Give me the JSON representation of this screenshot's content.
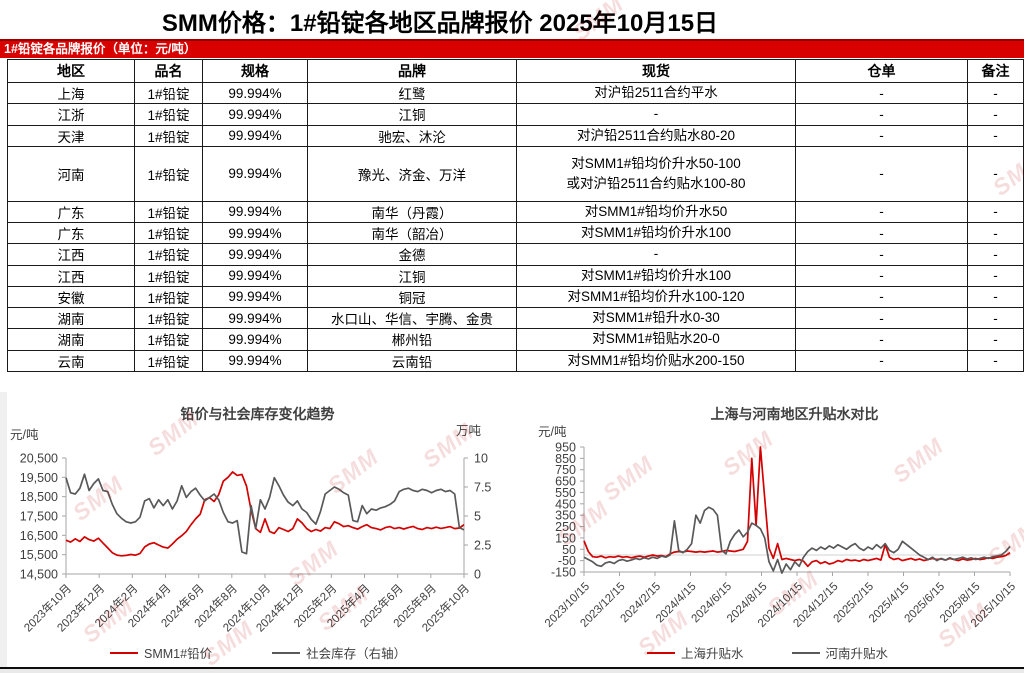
{
  "page": {
    "title": "SMM价格：1#铅锭各地区品牌报价 2025年10月15日",
    "banner": "1#铅锭各品牌报价（单位：元/吨）",
    "watermark": "SMM",
    "accent_red": "#d90000"
  },
  "table": {
    "headers": [
      "地区",
      "品名",
      "规格",
      "品牌",
      "现货",
      "仓单",
      "备注"
    ],
    "rows": [
      {
        "region": "上海",
        "product": "1#铅锭",
        "spec": "99.994%",
        "brand": "红鹭",
        "spot": [
          "对沪铅2511合约平水"
        ],
        "warrant": "-",
        "note": "-"
      },
      {
        "region": "江浙",
        "product": "1#铅锭",
        "spec": "99.994%",
        "brand": "江铜",
        "spot": [
          "-"
        ],
        "warrant": "-",
        "note": "-"
      },
      {
        "region": "天津",
        "product": "1#铅锭",
        "spec": "99.994%",
        "brand": "驰宏、沐沦",
        "spot": [
          "对沪铅2511合约贴水80-20"
        ],
        "warrant": "-",
        "note": "-"
      },
      {
        "region": "河南",
        "product": "1#铅锭",
        "spec": "99.994%",
        "brand": "豫光、济金、万洋",
        "spot": [
          "对SMM1#铅均价升水50-100",
          "或对沪铅2511合约贴水100-80"
        ],
        "warrant": "-",
        "note": "-"
      },
      {
        "region": "广东",
        "product": "1#铅锭",
        "spec": "99.994%",
        "brand": "南华（丹霞）",
        "spot": [
          "对SMM1#铅均价升水50"
        ],
        "warrant": "-",
        "note": "-"
      },
      {
        "region": "广东",
        "product": "1#铅锭",
        "spec": "99.994%",
        "brand": "南华（韶冶）",
        "spot": [
          "对SMM1#铅均价升水100"
        ],
        "warrant": "-",
        "note": "-"
      },
      {
        "region": "江西",
        "product": "1#铅锭",
        "spec": "99.994%",
        "brand": "金德",
        "spot": [
          "-"
        ],
        "warrant": "-",
        "note": "-"
      },
      {
        "region": "江西",
        "product": "1#铅锭",
        "spec": "99.994%",
        "brand": "江铜",
        "spot": [
          "对SMM1#铅均价升水100"
        ],
        "warrant": "-",
        "note": "-"
      },
      {
        "region": "安徽",
        "product": "1#铅锭",
        "spec": "99.994%",
        "brand": "铜冠",
        "spot": [
          "对SMM1#铅均价升水100-120"
        ],
        "warrant": "-",
        "note": "-"
      },
      {
        "region": "湖南",
        "product": "1#铅锭",
        "spec": "99.994%",
        "brand": "水口山、华信、宇腾、金贵",
        "spot": [
          "对SMM1#铅升水0-30"
        ],
        "warrant": "-",
        "note": "-"
      },
      {
        "region": "湖南",
        "product": "1#铅锭",
        "spec": "99.994%",
        "brand": "郴州铅",
        "spot": [
          "对SMM1#铅贴水20-0"
        ],
        "warrant": "-",
        "note": "-"
      },
      {
        "region": "云南",
        "product": "1#铅锭",
        "spec": "99.994%",
        "brand": "云南铅",
        "spot": [
          "对SMM1#铅均价贴水200-150"
        ],
        "warrant": "-",
        "note": "-"
      }
    ]
  },
  "chart_data": [
    {
      "type": "line",
      "title": "铅价与社会库存变化趋势",
      "left_axis": {
        "label": "元/吨",
        "min": 14500,
        "max": 20500,
        "ticks": [
          "20,500",
          "19,500",
          "18,500",
          "17,500",
          "16,500",
          "15,500",
          "14,500"
        ]
      },
      "right_axis": {
        "label": "万吨",
        "min": 0,
        "max": 10,
        "ticks": [
          "10",
          "7.5",
          "5",
          "2.5",
          "0"
        ]
      },
      "x_ticks": [
        "2023年10月",
        "2023年12月",
        "2024年2月",
        "2024年4月",
        "2024年6月",
        "2024年8月",
        "2024年10月",
        "2024年12月",
        "2025年2月",
        "2025年4月",
        "2025年6月",
        "2025年8月",
        "2025年10月"
      ],
      "grid": false,
      "legend_position": "bottom",
      "series": [
        {
          "name": "SMM1#铅价",
          "color": "#d40000",
          "axis": "left",
          "values": [
            16250,
            16150,
            16320,
            16180,
            16420,
            16280,
            16200,
            16350,
            16100,
            15850,
            15600,
            15480,
            15440,
            15460,
            15510,
            15470,
            15560,
            15900,
            16050,
            16120,
            16000,
            15890,
            15840,
            16050,
            16300,
            16480,
            16700,
            17050,
            17350,
            17600,
            18350,
            18450,
            18250,
            18600,
            19300,
            19500,
            19780,
            19600,
            19650,
            19050,
            17800,
            16850,
            16650,
            17350,
            16700,
            16600,
            16900,
            16800,
            16700,
            16850,
            17350,
            17150,
            16850,
            16700,
            16800,
            16720,
            16900,
            16850,
            17200,
            17100,
            16950,
            17000,
            16900,
            16820,
            16950,
            17050,
            16900,
            16850,
            16780,
            16900,
            16950,
            16850,
            16900,
            16830,
            16900,
            16960,
            16850,
            16800,
            16900,
            16850,
            16920,
            16860,
            16900,
            16950,
            16850,
            16880,
            17050
          ]
        },
        {
          "name": "社会库存（右轴）",
          "color": "#595959",
          "axis": "right",
          "values": [
            8.3,
            7.0,
            6.9,
            7.4,
            8.6,
            7.2,
            7.8,
            8.2,
            7.2,
            7.1,
            6.0,
            5.2,
            4.8,
            4.5,
            4.4,
            4.5,
            4.9,
            6.3,
            6.5,
            5.7,
            6.4,
            5.9,
            6.4,
            5.6,
            6.3,
            7.6,
            6.6,
            7.1,
            7.4,
            6.8,
            6.3,
            6.6,
            6.9,
            6.4,
            5.3,
            4.5,
            4.4,
            4.6,
            1.9,
            1.75,
            5.9,
            3.9,
            6.4,
            5.6,
            6.6,
            8.3,
            7.6,
            6.8,
            6.2,
            5.9,
            6.3,
            5.6,
            5.3,
            4.7,
            4.3,
            5.4,
            6.9,
            7.2,
            7.5,
            7.3,
            7.0,
            6.8,
            4.6,
            4.5,
            5.9,
            5.2,
            5.6,
            5.5,
            5.7,
            5.8,
            6.0,
            6.3,
            7.1,
            7.3,
            7.4,
            7.2,
            7.1,
            7.3,
            7.2,
            7.0,
            7.2,
            7.3,
            7.1,
            7.2,
            6.9,
            4.0,
            3.8
          ]
        }
      ]
    },
    {
      "type": "line",
      "title": "上海与河南地区升贴水对比",
      "left_axis": {
        "label": "元/吨",
        "min": -150,
        "max": 950,
        "ticks": [
          "950",
          "850",
          "750",
          "650",
          "550",
          "450",
          "350",
          "250",
          "150",
          "50",
          "-50",
          "-150"
        ]
      },
      "x_ticks": [
        "2023/10/15",
        "2023/12/15",
        "2024/2/15",
        "2024/4/15",
        "2024/6/15",
        "2024/8/15",
        "2024/10/15",
        "2024/12/15",
        "2025/2/15",
        "2025/4/15",
        "2025/6/15",
        "2025/8/15",
        "2025/10/15"
      ],
      "grid": false,
      "zero_line": true,
      "legend_position": "bottom",
      "series": [
        {
          "name": "上海升贴水",
          "color": "#d40000",
          "axis": "left",
          "values": [
            125,
            30,
            -15,
            -20,
            -10,
            -25,
            -15,
            -20,
            -10,
            -20,
            -15,
            -25,
            -15,
            -10,
            -20,
            -10,
            0,
            -10,
            -5,
            -15,
            10,
            25,
            30,
            25,
            35,
            30,
            25,
            30,
            25,
            30,
            35,
            25,
            30,
            40,
            35,
            30,
            40,
            50,
            120,
            850,
            260,
            950,
            500,
            60,
            -30,
            100,
            -40,
            -30,
            -40,
            -50,
            -40,
            -55,
            -100,
            -60,
            -50,
            -75,
            -60,
            -80,
            -70,
            -50,
            -60,
            -40,
            -50,
            -45,
            -55,
            -40,
            -50,
            -40,
            -30,
            -45,
            90,
            -20,
            -40,
            -30,
            -50,
            -40,
            -30,
            -45,
            -35,
            -50,
            -40,
            -30,
            -40,
            -35,
            -45,
            -30,
            -40,
            -50,
            -35,
            -45,
            -40,
            -30,
            -40,
            -35,
            -25,
            -30,
            -20,
            -15,
            -5,
            20
          ]
        },
        {
          "name": "河南升贴水",
          "color": "#595959",
          "axis": "left",
          "values": [
            -20,
            -40,
            -60,
            -90,
            -100,
            -70,
            -60,
            -75,
            -50,
            -40,
            -55,
            -45,
            -30,
            -40,
            -25,
            -35,
            -20,
            -30,
            -10,
            -20,
            0,
            300,
            40,
            20,
            50,
            100,
            350,
            280,
            390,
            420,
            400,
            350,
            40,
            10,
            120,
            180,
            220,
            160,
            200,
            280,
            260,
            230,
            150,
            -60,
            -140,
            -40,
            -160,
            -80,
            -130,
            -60,
            -100,
            -20,
            30,
            60,
            40,
            70,
            50,
            80,
            60,
            90,
            70,
            50,
            80,
            100,
            60,
            40,
            70,
            50,
            90,
            60,
            100,
            40,
            20,
            50,
            120,
            90,
            60,
            30,
            0,
            -20,
            -40,
            -20,
            -50,
            -30,
            -45,
            -25,
            -40,
            -30,
            -20,
            -35,
            -25,
            -40,
            -30,
            -20,
            -30,
            -15,
            -10,
            0,
            30,
            75
          ]
        }
      ]
    }
  ]
}
